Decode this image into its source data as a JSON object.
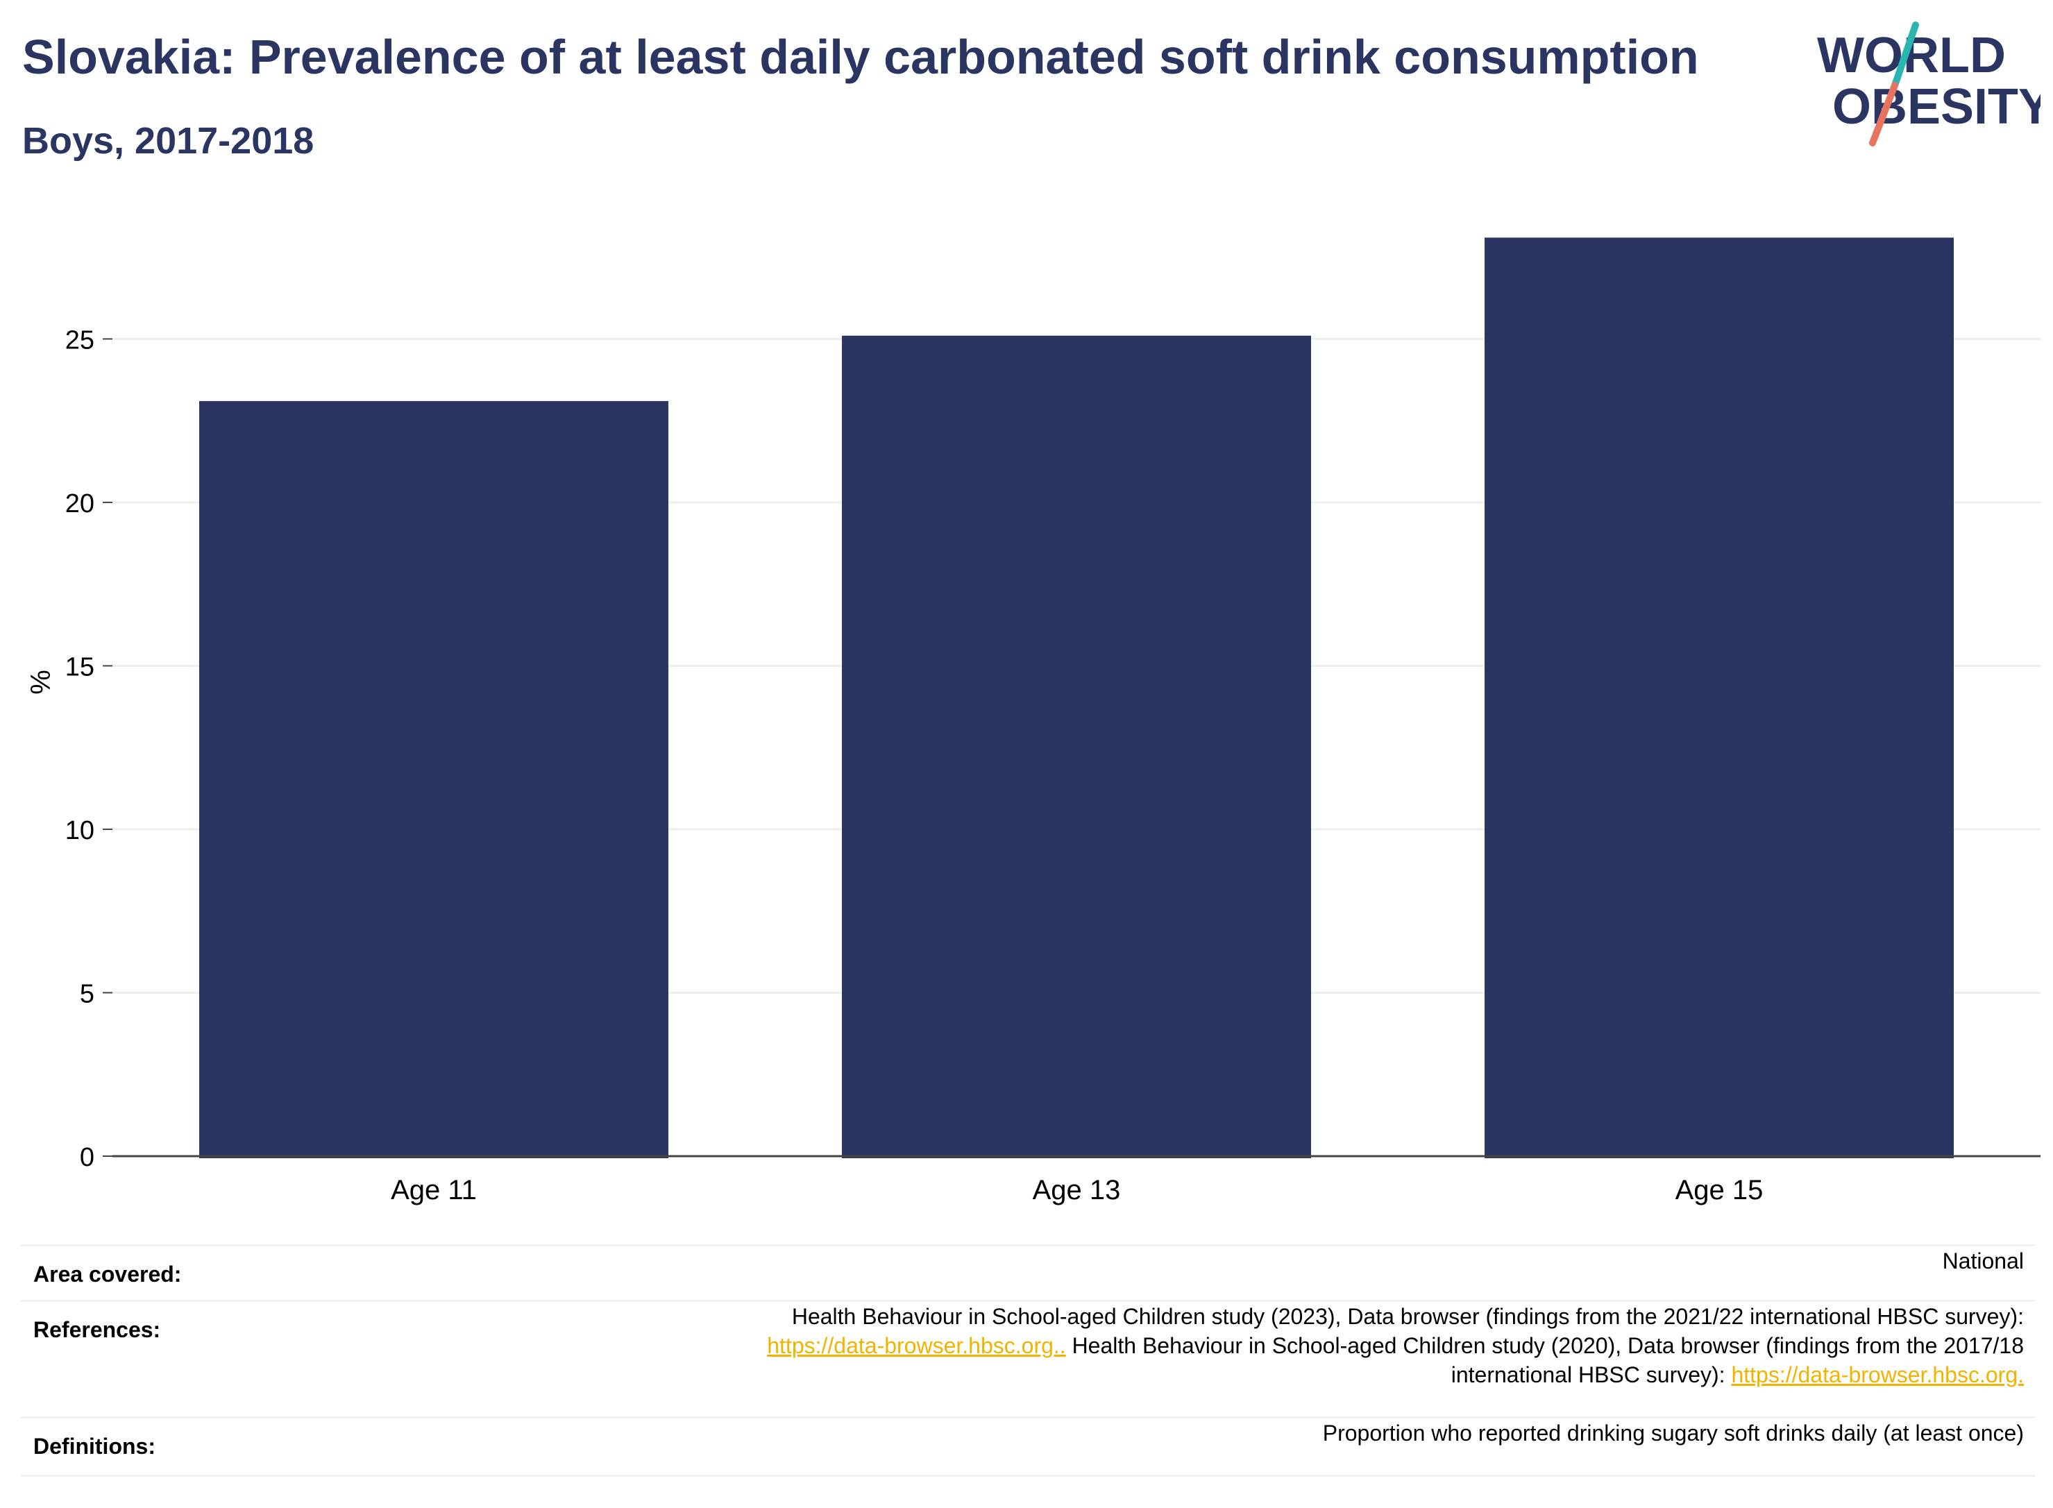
{
  "header": {
    "title": "Slovakia: Prevalence of at least daily carbonated soft drink consumption",
    "subtitle": "Boys, 2017-2018"
  },
  "logo": {
    "line1": "WORLD",
    "line2": "OBESITY",
    "colors": {
      "text": "#2a3561",
      "slash_top": "#2bb5b0",
      "slash_bottom": "#e8735f"
    }
  },
  "chart_data": {
    "type": "bar",
    "title": "Slovakia: Prevalence of at least daily carbonated soft drink consumption",
    "subtitle": "Boys, 2017-2018",
    "categories": [
      "Age 11",
      "Age 13",
      "Age 15"
    ],
    "values": [
      23.1,
      25.1,
      28.1
    ],
    "xlabel": "",
    "ylabel": "%",
    "ylim": [
      0,
      29
    ],
    "yticks": [
      0,
      5,
      10,
      15,
      20,
      25
    ],
    "grid": true,
    "bar_color": "#2a3561"
  },
  "info": {
    "area": {
      "label": "Area covered:",
      "value": "National"
    },
    "references": {
      "label": "References:",
      "line1": "Health Behaviour in School-aged Children study (2023), Data browser (findings from the 2021/22 international HBSC survey):",
      "link1": "https://data-browser.hbsc.org..",
      "line2": " Health Behaviour in School-aged Children study (2020), Data browser (findings from the 2017/18",
      "line3": "international HBSC survey): ",
      "link2": "https://data-browser.hbsc.org."
    },
    "definitions": {
      "label": "Definitions:",
      "value": "Proportion who reported drinking sugary soft drinks daily (at least once)"
    }
  }
}
